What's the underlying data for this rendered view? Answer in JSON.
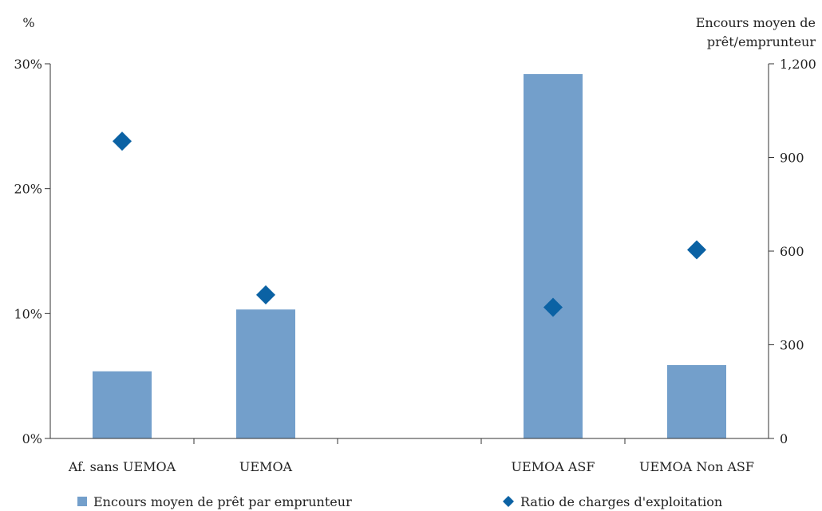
{
  "chart_data": {
    "type": "bar",
    "categories": [
      "Af. sans UEMOA",
      "UEMOA",
      "",
      "UEMOA ASF",
      "UEMOA Non ASF"
    ],
    "series": [
      {
        "name": "Encours moyen de prêt par emprunteur",
        "kind": "bar",
        "axis": "right",
        "color": "#739fcb",
        "values": [
          215,
          413,
          null,
          1167,
          235
        ]
      },
      {
        "name": "Ratio de charges d'exploitation",
        "kind": "marker",
        "marker": "diamond",
        "axis": "left",
        "color": "#0b62a4",
        "values": [
          23.8,
          11.5,
          null,
          10.5,
          15.1
        ]
      }
    ],
    "left_axis": {
      "label": "%",
      "min": 0,
      "max": 30,
      "ticks": [
        0,
        10,
        20,
        30
      ],
      "tick_labels": [
        "0%",
        "10%",
        "20%",
        "30%"
      ]
    },
    "right_axis": {
      "label_lines": [
        "Encours moyen de",
        "prêt/emprunteur"
      ],
      "min": 0,
      "max": 1200,
      "ticks": [
        0,
        300,
        600,
        900,
        1200
      ],
      "tick_labels": [
        "0",
        "300",
        "600",
        "900",
        "1,200"
      ]
    },
    "grid": false,
    "legend_position": "bottom"
  }
}
